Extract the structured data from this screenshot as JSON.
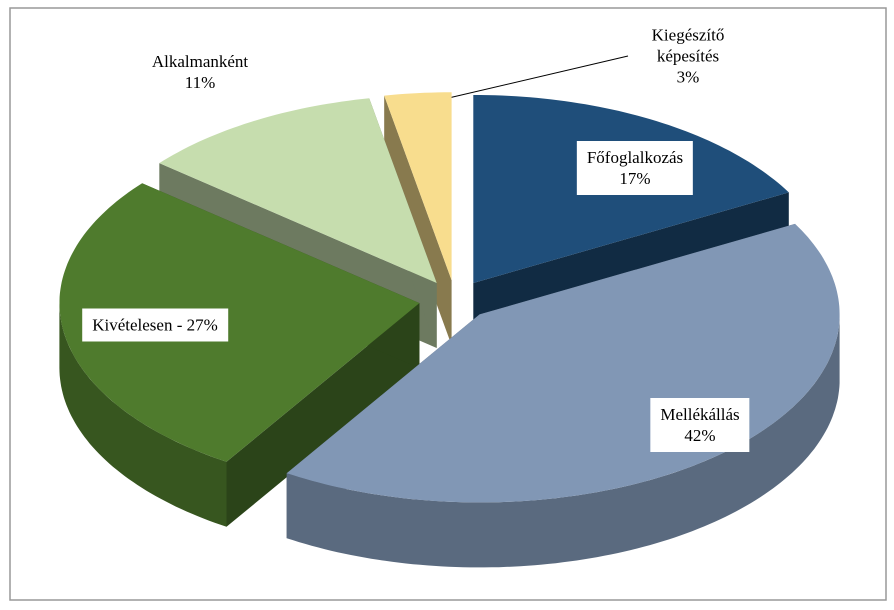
{
  "chart_data": {
    "type": "pie3d",
    "labels": [
      [
        "Főfoglalkozás",
        "17%"
      ],
      [
        "Mellékállás",
        "42%"
      ],
      [
        "Kivételesen - 27%"
      ],
      [
        "Alkalmanként",
        "11%"
      ],
      [
        "Kiegészítő",
        "képesítés",
        "3%"
      ]
    ],
    "values": [
      17,
      42,
      27,
      11,
      3
    ],
    "colors": [
      "#1f4e7a",
      "#8197b5",
      "#4f7b2d",
      "#c6ddae",
      "#f8dd8e"
    ]
  }
}
